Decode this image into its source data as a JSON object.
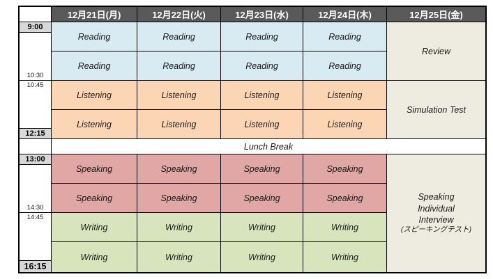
{
  "header": {
    "days": [
      "12月21日(月)",
      "12月22日(火)",
      "12月23日(水)",
      "12月24日(木)",
      "12月25日(金)"
    ]
  },
  "times": {
    "t0900": "9:00",
    "t1030": "10:30",
    "t1045": "10:45",
    "t1215": "12:15",
    "t1300": "13:00",
    "t1430": "14:30",
    "t1445": "14:45",
    "t1615": "16:15"
  },
  "activities": {
    "reading": "Reading",
    "listening": "Listening",
    "speaking": "Speaking",
    "writing": "Writing"
  },
  "special": {
    "lunch": "Lunch Break",
    "review": "Review",
    "simulation": "Simulation Test",
    "interview_line1": "Speaking",
    "interview_line2": "Individual",
    "interview_line3": "Interview",
    "interview_line4": "(スピーキングテスト)"
  },
  "colors": {
    "header_bg": "#595959",
    "header_text": "#ffffff",
    "reading_bg": "#D9EBF2",
    "listening_bg": "#FCD5B4",
    "speaking_bg": "#E0A7A4",
    "writing_bg": "#D8E4BC",
    "friday_bg": "#EEECE1",
    "time_label_bg": "#D8D8D8",
    "border": "#000000"
  }
}
